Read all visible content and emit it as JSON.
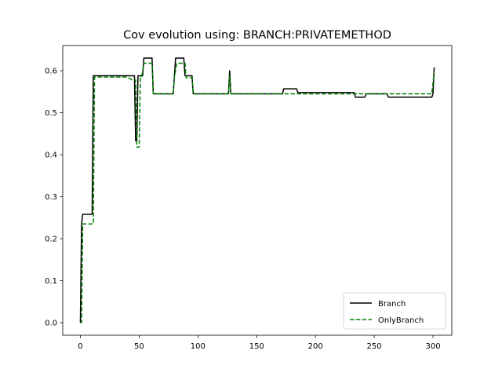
{
  "chart_data": {
    "type": "line",
    "title": "Cov evolution using: BRANCH:PRIVATEMETHOD",
    "xlabel": "",
    "ylabel": "",
    "xlim": [
      -15,
      316
    ],
    "ylim": [
      -0.03,
      0.66
    ],
    "xticks": [
      0,
      50,
      100,
      150,
      200,
      250,
      300
    ],
    "yticks": [
      0.0,
      0.1,
      0.2,
      0.3,
      0.4,
      0.5,
      0.6
    ],
    "xtick_labels": [
      "0",
      "50",
      "100",
      "150",
      "200",
      "250",
      "300"
    ],
    "ytick_labels": [
      "0.0",
      "0.1",
      "0.2",
      "0.3",
      "0.4",
      "0.5",
      "0.6"
    ],
    "grid": false,
    "legend_position": "lower-right",
    "series": [
      {
        "name": "Branch",
        "color": "#000000",
        "style": "solid",
        "x": [
          0,
          1,
          2,
          10,
          11,
          46,
          47,
          48,
          49,
          50,
          51,
          52,
          53,
          54,
          61,
          62,
          79,
          80,
          81,
          88,
          89,
          90,
          95,
          96,
          126,
          127,
          128,
          172,
          173,
          184,
          185,
          233,
          234,
          242,
          243,
          261,
          262,
          299,
          300,
          301
        ],
        "y": [
          0.0,
          0.235,
          0.258,
          0.258,
          0.588,
          0.588,
          0.433,
          0.433,
          0.588,
          0.588,
          0.588,
          0.588,
          0.588,
          0.63,
          0.63,
          0.545,
          0.545,
          0.588,
          0.63,
          0.63,
          0.588,
          0.588,
          0.588,
          0.545,
          0.545,
          0.6,
          0.545,
          0.545,
          0.557,
          0.557,
          0.548,
          0.548,
          0.537,
          0.537,
          0.545,
          0.545,
          0.537,
          0.537,
          0.545,
          0.608
        ]
      },
      {
        "name": "OnlyBranch",
        "color": "#008000",
        "style": "dashed",
        "x": [
          0,
          1,
          2,
          10,
          11,
          12,
          40,
          44,
          46,
          47,
          48,
          49,
          50,
          51,
          52,
          54,
          61,
          62,
          79,
          80,
          82,
          89,
          90,
          95,
          96,
          126,
          127,
          128,
          298,
          299,
          301
        ],
        "y": [
          0.0,
          0.0,
          0.235,
          0.235,
          0.235,
          0.585,
          0.585,
          0.578,
          0.578,
          0.578,
          0.418,
          0.418,
          0.418,
          0.583,
          0.583,
          0.618,
          0.618,
          0.545,
          0.545,
          0.585,
          0.618,
          0.618,
          0.583,
          0.583,
          0.545,
          0.545,
          0.587,
          0.545,
          0.545,
          0.545,
          0.597
        ]
      }
    ]
  }
}
